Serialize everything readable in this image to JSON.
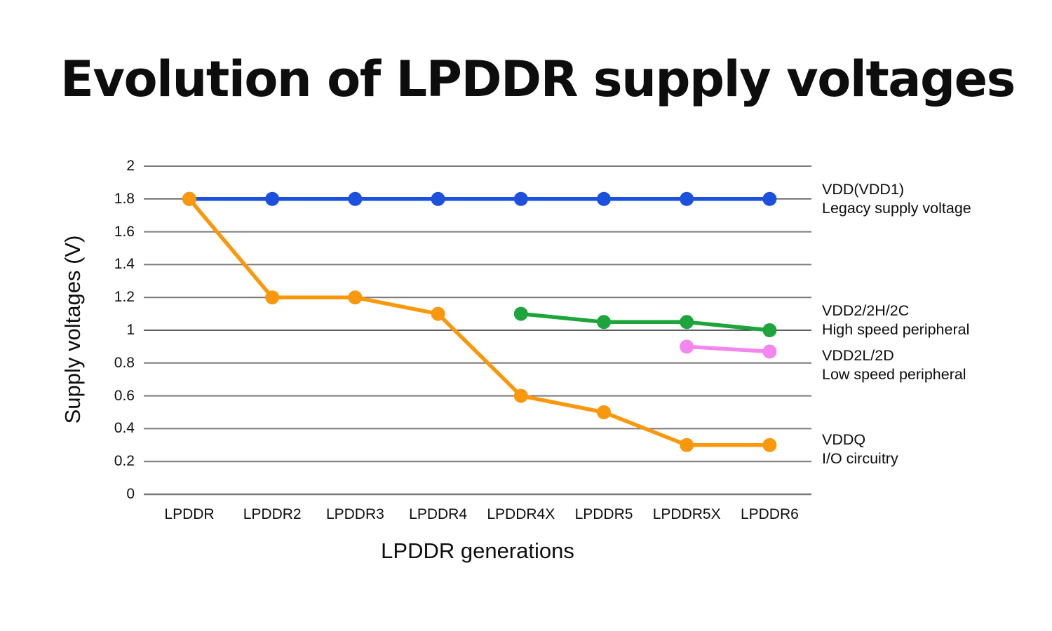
{
  "title": "Evolution of LPDDR supply voltages",
  "chart_data": {
    "type": "line",
    "title": "Evolution of LPDDR supply voltages",
    "xlabel": "LPDDR generations",
    "ylabel": "Supply voltages (V)",
    "ylim": [
      0,
      2
    ],
    "ytick_step": 0.2,
    "ytick_labels": [
      "2",
      "1.8",
      "1.6",
      "1.4",
      "1.2",
      "1",
      "0.8",
      "0.6",
      "0.4",
      "0.2",
      "0"
    ],
    "categories": [
      "LPDDR",
      "LPDDR2",
      "LPDDR3",
      "LPDDR4",
      "LPDDR4X",
      "LPDDR5",
      "LPDDR5X",
      "LPDDR6"
    ],
    "grid": "horizontal",
    "gridline_color": "#7a7a7a",
    "emphasis_gridline_color": "#000000",
    "emphasis_gridlines_at": [
      1.8,
      1.0
    ],
    "legend_position": "right",
    "series": [
      {
        "name": "VDD(VDD1)",
        "description": "Legacy supply voltage",
        "color": "#1b51dc",
        "start_index": 0,
        "values": [
          1.8,
          1.8,
          1.8,
          1.8,
          1.8,
          1.8,
          1.8,
          1.8
        ]
      },
      {
        "name": "VDD2/2H/2C",
        "description": "High speed peripheral",
        "color": "#1da53c",
        "start_index": 4,
        "values": [
          1.1,
          1.05,
          1.05,
          1.0
        ]
      },
      {
        "name": "VDD2L/2D",
        "description": "Low speed peripheral",
        "color": "#f487ee",
        "start_index": 6,
        "values": [
          0.9,
          0.87
        ]
      },
      {
        "name": "VDDQ",
        "description": "I/O circuitry",
        "color": "#f9980d",
        "start_index": 0,
        "values": [
          1.8,
          1.2,
          1.2,
          1.1,
          0.6,
          0.5,
          0.3,
          0.3
        ]
      }
    ]
  }
}
